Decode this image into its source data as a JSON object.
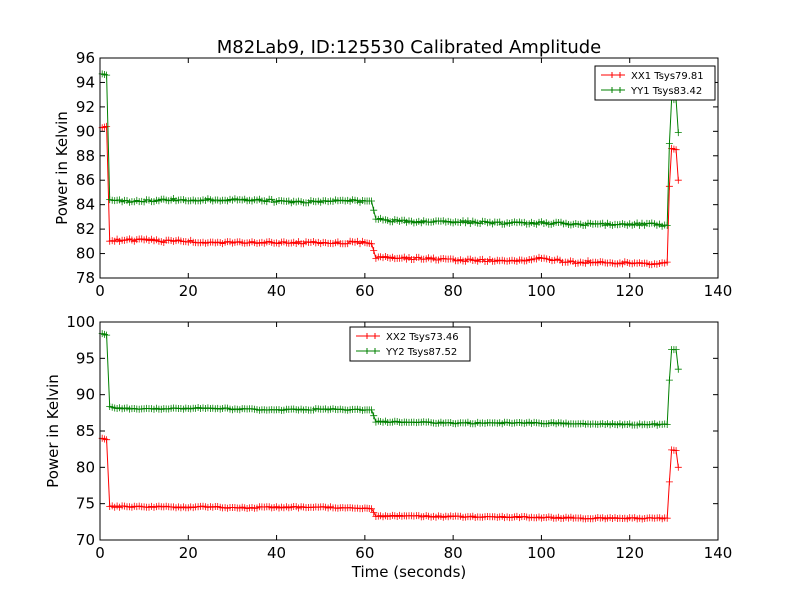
{
  "title": "M82Lab9, ID:125530 Calibrated Amplitude",
  "chart_data": [
    {
      "type": "line",
      "ylabel": "Power in Kelvin",
      "xlabel": "",
      "xlim": [
        0,
        140
      ],
      "ylim": [
        78,
        96
      ],
      "xticks": [
        0,
        20,
        40,
        60,
        80,
        100,
        120,
        140
      ],
      "yticks": [
        78,
        80,
        82,
        84,
        86,
        88,
        90,
        92,
        94,
        96
      ],
      "grid": false,
      "legend_position": "top-right",
      "series": [
        {
          "name": "XX1 Tsys79.81",
          "color": "#ff0000",
          "points": [
            [
              0.5,
              90.3
            ],
            [
              1.5,
              90.4
            ],
            [
              2.2,
              81.1
            ],
            [
              5,
              81.1
            ],
            [
              10,
              81.1
            ],
            [
              15,
              81.0
            ],
            [
              20,
              81.0
            ],
            [
              25,
              80.9
            ],
            [
              30,
              80.9
            ],
            [
              35,
              80.9
            ],
            [
              40,
              80.9
            ],
            [
              45,
              80.9
            ],
            [
              50,
              80.9
            ],
            [
              55,
              80.9
            ],
            [
              60,
              80.9
            ],
            [
              61.5,
              80.8
            ],
            [
              62.5,
              79.7
            ],
            [
              70,
              79.6
            ],
            [
              80,
              79.5
            ],
            [
              90,
              79.4
            ],
            [
              95,
              79.4
            ],
            [
              100,
              79.6
            ],
            [
              103,
              79.5
            ],
            [
              106,
              79.3
            ],
            [
              110,
              79.3
            ],
            [
              115,
              79.3
            ],
            [
              120,
              79.2
            ],
            [
              125,
              79.2
            ],
            [
              128.5,
              79.3
            ],
            [
              129,
              85.5
            ],
            [
              129.5,
              88.6
            ],
            [
              130.5,
              88.5
            ],
            [
              131,
              86.0
            ]
          ]
        },
        {
          "name": "YY1 Tsys83.42",
          "color": "#008000",
          "points": [
            [
              0.5,
              94.7
            ],
            [
              1.5,
              94.6
            ],
            [
              2.2,
              84.5
            ],
            [
              5,
              84.3
            ],
            [
              10,
              84.3
            ],
            [
              15,
              84.4
            ],
            [
              20,
              84.4
            ],
            [
              25,
              84.4
            ],
            [
              30,
              84.4
            ],
            [
              35,
              84.4
            ],
            [
              40,
              84.3
            ],
            [
              45,
              84.2
            ],
            [
              50,
              84.3
            ],
            [
              55,
              84.3
            ],
            [
              60,
              84.3
            ],
            [
              61.5,
              84.3
            ],
            [
              62.5,
              82.8
            ],
            [
              70,
              82.6
            ],
            [
              80,
              82.6
            ],
            [
              90,
              82.5
            ],
            [
              100,
              82.5
            ],
            [
              110,
              82.4
            ],
            [
              120,
              82.4
            ],
            [
              125,
              82.4
            ],
            [
              128.5,
              82.3
            ],
            [
              129,
              89.0
            ],
            [
              129.5,
              92.6
            ],
            [
              130.5,
              92.6
            ],
            [
              131,
              89.9
            ]
          ]
        }
      ]
    },
    {
      "type": "line",
      "ylabel": "Power in Kelvin",
      "xlabel": "Time (seconds)",
      "xlim": [
        0,
        140
      ],
      "ylim": [
        70,
        100
      ],
      "xticks": [
        0,
        20,
        40,
        60,
        80,
        100,
        120,
        140
      ],
      "yticks": [
        70,
        75,
        80,
        85,
        90,
        95,
        100
      ],
      "grid": false,
      "legend_position": "top-center",
      "series": [
        {
          "name": "XX2 Tsys73.46",
          "color": "#ff0000",
          "points": [
            [
              0.5,
              84.0
            ],
            [
              1.5,
              83.8
            ],
            [
              2.2,
              74.6
            ],
            [
              5,
              74.6
            ],
            [
              10,
              74.6
            ],
            [
              20,
              74.5
            ],
            [
              25,
              74.6
            ],
            [
              30,
              74.4
            ],
            [
              40,
              74.5
            ],
            [
              50,
              74.5
            ],
            [
              60,
              74.4
            ],
            [
              61.5,
              74.3
            ],
            [
              62.5,
              73.3
            ],
            [
              70,
              73.3
            ],
            [
              80,
              73.2
            ],
            [
              90,
              73.2
            ],
            [
              100,
              73.1
            ],
            [
              110,
              73.0
            ],
            [
              120,
              73.0
            ],
            [
              128.5,
              73.0
            ],
            [
              129,
              78.0
            ],
            [
              129.5,
              82.4
            ],
            [
              130.5,
              82.3
            ],
            [
              131,
              80.0
            ]
          ]
        },
        {
          "name": "YY2 Tsys87.52",
          "color": "#008000",
          "points": [
            [
              0.5,
              98.4
            ],
            [
              1.5,
              98.2
            ],
            [
              2.2,
              88.3
            ],
            [
              5,
              88.1
            ],
            [
              10,
              88.0
            ],
            [
              20,
              88.1
            ],
            [
              25,
              88.2
            ],
            [
              30,
              88.0
            ],
            [
              40,
              87.9
            ],
            [
              50,
              88.0
            ],
            [
              60,
              87.9
            ],
            [
              61.5,
              87.9
            ],
            [
              62.5,
              86.3
            ],
            [
              70,
              86.2
            ],
            [
              80,
              86.1
            ],
            [
              90,
              86.1
            ],
            [
              100,
              86.1
            ],
            [
              110,
              86.0
            ],
            [
              120,
              85.9
            ],
            [
              128.5,
              85.9
            ],
            [
              129,
              92.0
            ],
            [
              129.5,
              96.2
            ],
            [
              130.5,
              96.2
            ],
            [
              131,
              93.5
            ]
          ]
        }
      ]
    }
  ]
}
